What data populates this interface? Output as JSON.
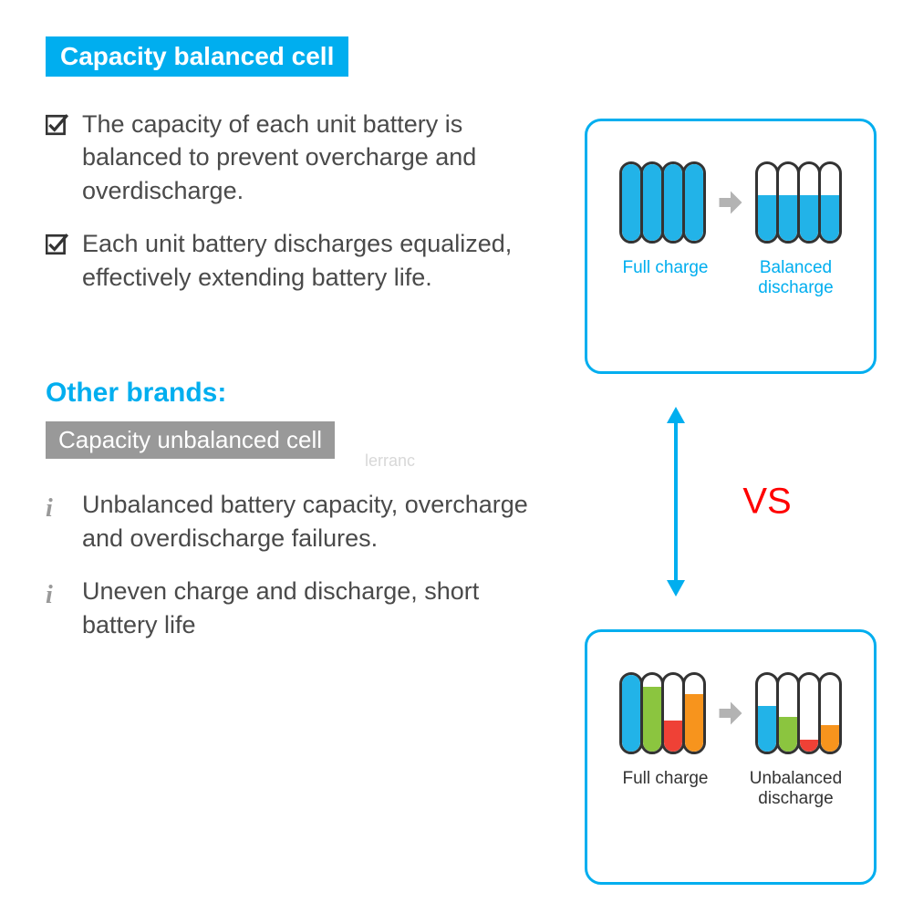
{
  "colors": {
    "accent_blue": "#00aeef",
    "text_grey": "#4a4a4a",
    "grey_bar": "#999999",
    "red": "#ff0000",
    "cell_border": "#333333",
    "cell_blue": "#22b3e8",
    "cell_green": "#8bc53f",
    "cell_red": "#ef4136",
    "cell_orange": "#f7941d",
    "arrow_grey": "#b3b3b3",
    "watermark": "#d8d8d8"
  },
  "top": {
    "title": "Capacity balanced cell",
    "bullets": [
      "The capacity of each unit battery is balanced to prevent overcharge and overdischarge.",
      "Each unit battery discharges equalized, effectively extending battery life."
    ]
  },
  "bottom": {
    "other_brands": "Other brands:",
    "title": "Capacity unbalanced cell",
    "bullets": [
      "Unbalanced battery capacity, overcharge and overdischarge failures.",
      "Uneven charge and discharge, short battery life"
    ]
  },
  "watermark": "lerranc",
  "vs": "VS",
  "panel_top": {
    "left_cells": [
      {
        "fill": 100,
        "color": "#22b3e8"
      },
      {
        "fill": 100,
        "color": "#22b3e8"
      },
      {
        "fill": 100,
        "color": "#22b3e8"
      },
      {
        "fill": 100,
        "color": "#22b3e8"
      }
    ],
    "right_cells": [
      {
        "fill": 60,
        "color": "#22b3e8"
      },
      {
        "fill": 60,
        "color": "#22b3e8"
      },
      {
        "fill": 60,
        "color": "#22b3e8"
      },
      {
        "fill": 60,
        "color": "#22b3e8"
      }
    ],
    "left_label": "Full charge",
    "right_label": "Balanced discharge",
    "label_color": "#00aeef"
  },
  "panel_bot": {
    "left_cells": [
      {
        "fill": 100,
        "color": "#22b3e8"
      },
      {
        "fill": 85,
        "color": "#8bc53f"
      },
      {
        "fill": 40,
        "color": "#ef4136"
      },
      {
        "fill": 75,
        "color": "#f7941d"
      }
    ],
    "right_cells": [
      {
        "fill": 60,
        "color": "#22b3e8"
      },
      {
        "fill": 45,
        "color": "#8bc53f"
      },
      {
        "fill": 15,
        "color": "#ef4136"
      },
      {
        "fill": 35,
        "color": "#f7941d"
      }
    ],
    "left_label": "Full charge",
    "right_label": "Unbalanced discharge",
    "label_color": "#333333"
  }
}
